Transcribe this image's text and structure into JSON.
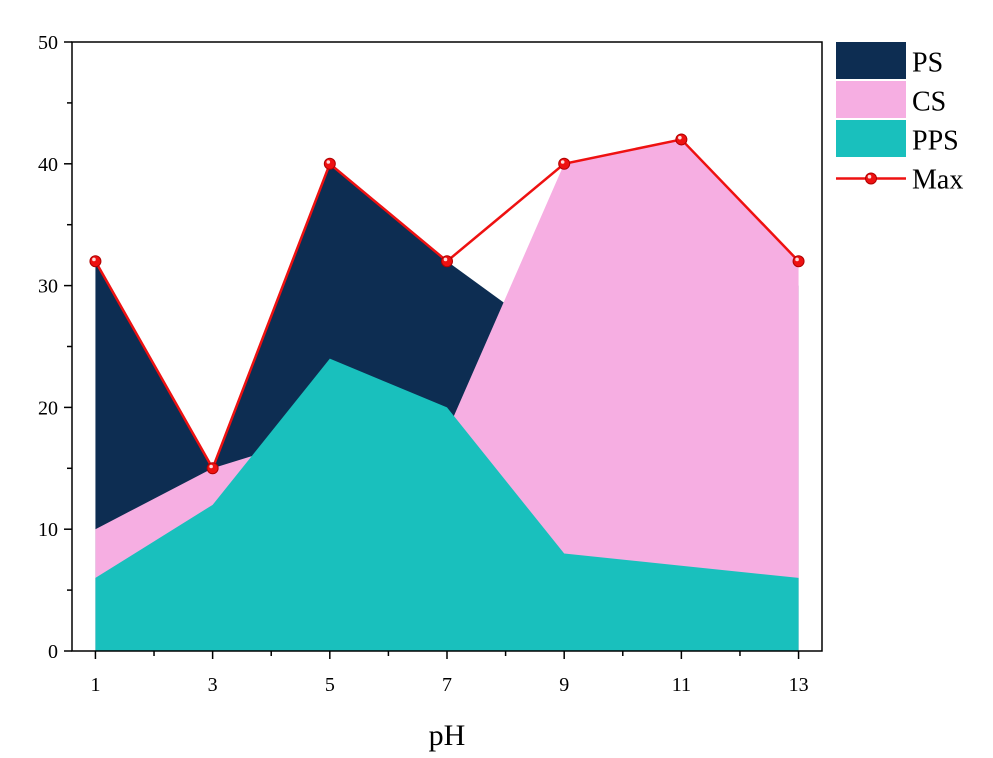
{
  "chart_data": {
    "type": "area",
    "xlabel": "pH",
    "ylabel": "",
    "title": "",
    "x": [
      1,
      3,
      5,
      7,
      9,
      11,
      13
    ],
    "xticks": [
      "1",
      "3",
      "5",
      "7",
      "9",
      "11",
      "13"
    ],
    "xlim": [
      0.6,
      13.4
    ],
    "ylim": [
      0,
      50
    ],
    "yticks": [
      "0",
      "10",
      "20",
      "30",
      "40",
      "50"
    ],
    "legend_position": "right",
    "grid": false,
    "series": [
      {
        "name": "PS",
        "kind": "area",
        "color": "#0d2d52",
        "values": [
          32,
          15,
          40,
          32,
          25,
          28,
          30
        ]
      },
      {
        "name": "CS",
        "kind": "area",
        "color": "#f6aee2",
        "values": [
          10,
          15,
          18,
          18,
          40,
          42,
          32
        ]
      },
      {
        "name": "PPS",
        "kind": "area",
        "color": "#19c0bd",
        "values": [
          6,
          12,
          24,
          20,
          8,
          7,
          6
        ]
      },
      {
        "name": "Max",
        "kind": "line",
        "color": "#ee1111",
        "values": [
          32,
          15,
          40,
          32,
          40,
          42,
          32
        ]
      }
    ]
  }
}
